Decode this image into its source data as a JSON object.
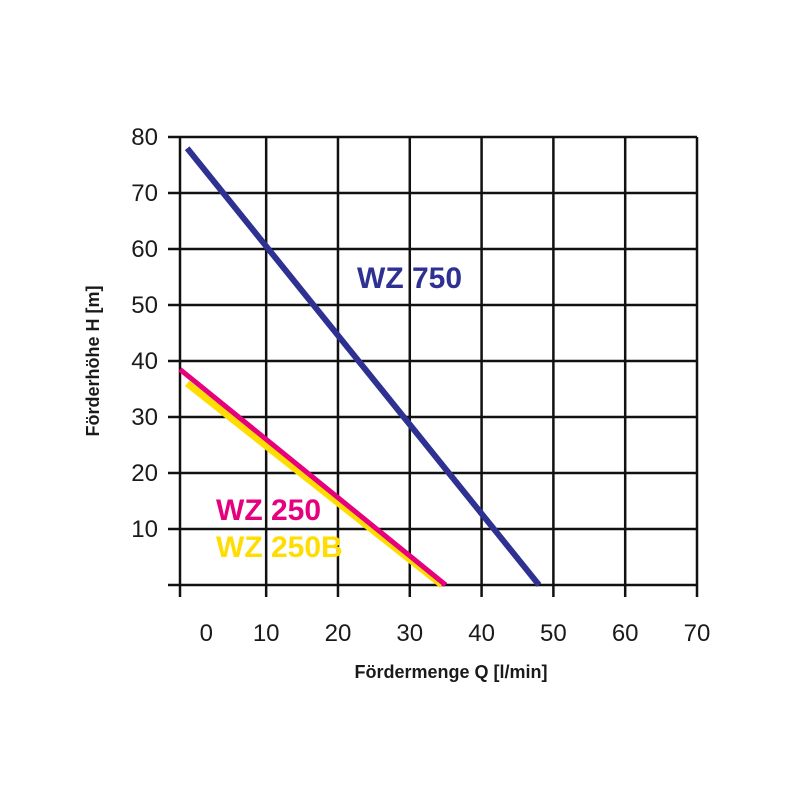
{
  "chart_data": {
    "type": "line",
    "xlabel": "Fördermenge Q [l/min]",
    "ylabel": "Förderhöhe H [m]",
    "xlim": [
      -2,
      70
    ],
    "ylim": [
      0,
      80
    ],
    "x_ticks": [
      0,
      10,
      20,
      30,
      40,
      50,
      60,
      70
    ],
    "y_ticks": [
      10,
      20,
      30,
      40,
      50,
      60,
      70,
      80
    ],
    "grid": true,
    "series": [
      {
        "name": "WZ 750",
        "color": "#2e3192",
        "x": [
          -1,
          48
        ],
        "y": [
          78,
          0
        ]
      },
      {
        "name": "WZ 250",
        "color": "#e6007e",
        "x": [
          -2,
          35
        ],
        "y": [
          38.5,
          0
        ]
      },
      {
        "name": "WZ 250B",
        "color": "#ffdd00",
        "x": [
          -1,
          34.5
        ],
        "y": [
          36,
          0
        ]
      }
    ]
  }
}
